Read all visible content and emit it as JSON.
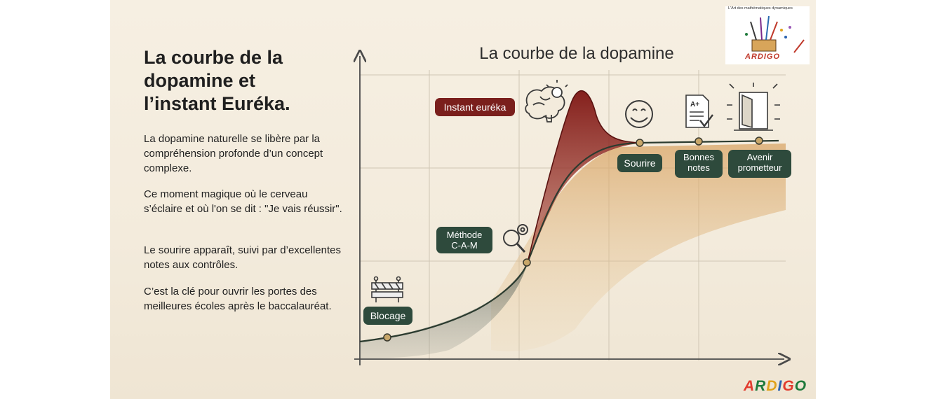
{
  "left_panel": {
    "heading": "La courbe de la dopamine et l’instant Euréka.",
    "paragraphs": [
      "La dopamine naturelle se libère par la compréhension profonde d’un concept complexe.",
      "Ce moment magique où le cerveau s’éclaire et où l'on se dit : \"Je vais réussir\".",
      "Le sourire apparaît, suivi par d’excellentes notes aux contrôles.",
      "C’est la clé pour ouvrir les portes des meilleures écoles après le baccalauréat."
    ]
  },
  "diagram": {
    "title": "La courbe de la dopamine",
    "stages": [
      {
        "label": "Blocage",
        "icon": "barrier-icon"
      },
      {
        "label": "Méthode\nC-A-M",
        "icon": "magnifier-gear-icon"
      },
      {
        "label": "Instant euréka",
        "icon": "brain-lightbulb-icon"
      },
      {
        "label": "Sourire",
        "icon": "smiley-icon"
      },
      {
        "label": "Bonnes\nnotes",
        "icon": "graded-paper-icon"
      },
      {
        "label": "Avenir\nprometteur",
        "icon": "open-door-icon"
      }
    ],
    "colors": {
      "label_green": "#2e4a3c",
      "label_red": "#7a1f1c",
      "curve": "#2b3b2f"
    }
  },
  "logo": {
    "tagline": "L'Art des mathématiques dynamiques",
    "wordmark": "ARDIGO",
    "brand_mark": [
      "A",
      "R",
      "D",
      "I",
      "G",
      "O"
    ]
  }
}
